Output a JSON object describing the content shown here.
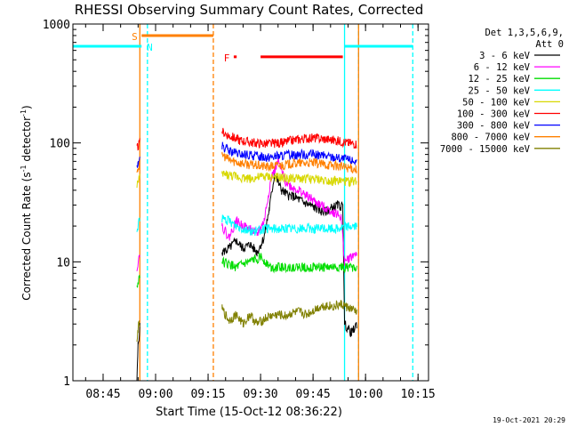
{
  "chart_data": {
    "type": "line",
    "title": "RHESSI Observing Summary Count Rates, Corrected",
    "xlabel": "Start Time (15-Oct-12 08:36:22)",
    "ylabel_main": "Corrected Count Rate (s",
    "ylabel_sup1": "-1",
    "ylabel_mid": " detector",
    "ylabel_sup2": "-1",
    "ylabel_end": ")",
    "y_scale": "log",
    "ylim": [
      1,
      1000
    ],
    "xlim": [
      "08:36:22",
      "10:18:00"
    ],
    "x_ticks": [
      "08:45",
      "09:00",
      "09:15",
      "09:30",
      "09:45",
      "10:00",
      "10:15"
    ],
    "y_ticks": [
      "1",
      "10",
      "100",
      "1000"
    ],
    "legend": {
      "position": "top-right",
      "header_1": "Det 1,3,5,6,9,",
      "header_2": "Att 0",
      "entries": [
        {
          "label": "3 - 6 keV",
          "color": "#000000"
        },
        {
          "label": "6 - 12 keV",
          "color": "#ff00ff"
        },
        {
          "label": "12 - 25 keV",
          "color": "#00dd00"
        },
        {
          "label": "25 - 50 keV",
          "color": "#00ffff"
        },
        {
          "label": "50 - 100 keV",
          "color": "#d8d800"
        },
        {
          "label": "100 - 300 keV",
          "color": "#ff0000"
        },
        {
          "label": "300 - 800 keV",
          "color": "#0000ff"
        },
        {
          "label": "800 - 7000 keV",
          "color": "#ff8000"
        },
        {
          "label": "7000 - 15000 keV",
          "color": "#808000"
        }
      ]
    },
    "segments": [
      {
        "start": "08:54:30",
        "end": "08:56:00"
      },
      {
        "start": "09:19:00",
        "end": "09:57:30"
      }
    ],
    "series": [
      {
        "name": "3 - 6 keV",
        "color": "#000000",
        "points": [
          [
            "08:54:40",
            1
          ],
          [
            "08:55:00",
            2
          ],
          [
            "08:55:30",
            2.8
          ],
          [
            "09:19:00",
            12
          ],
          [
            "09:21:00",
            13
          ],
          [
            "09:23:00",
            15
          ],
          [
            "09:25:00",
            13
          ],
          [
            "09:27:00",
            14
          ],
          [
            "09:29:00",
            12
          ],
          [
            "09:31:00",
            16
          ],
          [
            "09:32:30",
            28
          ],
          [
            "09:34:00",
            55
          ],
          [
            "09:36:00",
            40
          ],
          [
            "09:38:00",
            36
          ],
          [
            "09:40:00",
            35
          ],
          [
            "09:42:00",
            32
          ],
          [
            "09:44:00",
            30
          ],
          [
            "09:46:00",
            28
          ],
          [
            "09:48:00",
            26
          ],
          [
            "09:50:00",
            28
          ],
          [
            "09:52:00",
            30
          ],
          [
            "09:53:30",
            29
          ],
          [
            "09:54:00",
            3
          ],
          [
            "09:56:00",
            2.5
          ],
          [
            "09:57:30",
            3
          ]
        ]
      },
      {
        "name": "6 - 12 keV",
        "color": "#ff00ff",
        "points": [
          [
            "08:54:40",
            9
          ],
          [
            "08:55:30",
            12
          ],
          [
            "09:19:00",
            20
          ],
          [
            "09:21:00",
            16
          ],
          [
            "09:23:00",
            22
          ],
          [
            "09:25:00",
            20
          ],
          [
            "09:27:00",
            19
          ],
          [
            "09:29:00",
            17
          ],
          [
            "09:31:00",
            22
          ],
          [
            "09:33:00",
            50
          ],
          [
            "09:35:00",
            70
          ],
          [
            "09:37:00",
            48
          ],
          [
            "09:39:00",
            42
          ],
          [
            "09:41:00",
            40
          ],
          [
            "09:43:00",
            36
          ],
          [
            "09:45:00",
            33
          ],
          [
            "09:47:00",
            30
          ],
          [
            "09:49:00",
            28
          ],
          [
            "09:51:00",
            26
          ],
          [
            "09:53:00",
            24
          ],
          [
            "09:54:00",
            10
          ],
          [
            "09:57:30",
            12
          ]
        ]
      },
      {
        "name": "12 - 25 keV",
        "color": "#00dd00",
        "points": [
          [
            "08:54:40",
            6
          ],
          [
            "08:55:30",
            8
          ],
          [
            "09:19:00",
            10
          ],
          [
            "09:23:00",
            9
          ],
          [
            "09:27:00",
            10
          ],
          [
            "09:30:00",
            11
          ],
          [
            "09:33:00",
            9
          ],
          [
            "09:37:00",
            9
          ],
          [
            "09:41:00",
            9
          ],
          [
            "09:45:00",
            9
          ],
          [
            "09:49:00",
            9
          ],
          [
            "09:53:00",
            9
          ],
          [
            "09:57:30",
            9
          ]
        ]
      },
      {
        "name": "25 - 50 keV",
        "color": "#00ffff",
        "points": [
          [
            "08:54:40",
            18
          ],
          [
            "08:55:30",
            24
          ],
          [
            "09:19:00",
            23
          ],
          [
            "09:21:00",
            22
          ],
          [
            "09:23:00",
            20
          ],
          [
            "09:25:00",
            19
          ],
          [
            "09:28:00",
            18
          ],
          [
            "09:32:00",
            19
          ],
          [
            "09:36:00",
            19
          ],
          [
            "09:40:00",
            19
          ],
          [
            "09:44:00",
            19
          ],
          [
            "09:48:00",
            19
          ],
          [
            "09:52:00",
            19
          ],
          [
            "09:55:00",
            20
          ],
          [
            "09:57:30",
            20
          ]
        ]
      },
      {
        "name": "50 - 100 keV",
        "color": "#d8d800",
        "points": [
          [
            "08:54:40",
            45
          ],
          [
            "08:55:30",
            50
          ],
          [
            "09:19:00",
            55
          ],
          [
            "09:23:00",
            52
          ],
          [
            "09:27:00",
            50
          ],
          [
            "09:31:00",
            52
          ],
          [
            "09:35:00",
            51
          ],
          [
            "09:39:00",
            50
          ],
          [
            "09:43:00",
            50
          ],
          [
            "09:47:00",
            49
          ],
          [
            "09:51:00",
            48
          ],
          [
            "09:55:00",
            47
          ],
          [
            "09:57:30",
            48
          ]
        ]
      },
      {
        "name": "100 - 300 keV",
        "color": "#ff0000",
        "points": [
          [
            "08:54:40",
            90
          ],
          [
            "08:55:30",
            100
          ],
          [
            "09:19:00",
            125
          ],
          [
            "09:21:00",
            115
          ],
          [
            "09:24:00",
            105
          ],
          [
            "09:28:00",
            100
          ],
          [
            "09:32:00",
            98
          ],
          [
            "09:36:00",
            100
          ],
          [
            "09:40:00",
            106
          ],
          [
            "09:44:00",
            110
          ],
          [
            "09:48:00",
            108
          ],
          [
            "09:52:00",
            104
          ],
          [
            "09:55:00",
            100
          ],
          [
            "09:57:30",
            98
          ]
        ]
      },
      {
        "name": "300 - 800 keV",
        "color": "#0000ff",
        "points": [
          [
            "08:54:40",
            65
          ],
          [
            "08:55:30",
            70
          ],
          [
            "09:19:00",
            95
          ],
          [
            "09:21:00",
            85
          ],
          [
            "09:24:00",
            80
          ],
          [
            "09:28:00",
            78
          ],
          [
            "09:32:00",
            76
          ],
          [
            "09:36:00",
            78
          ],
          [
            "09:40:00",
            80
          ],
          [
            "09:44:00",
            80
          ],
          [
            "09:48:00",
            78
          ],
          [
            "09:52:00",
            75
          ],
          [
            "09:55:00",
            72
          ],
          [
            "09:57:30",
            70
          ]
        ]
      },
      {
        "name": "800 - 7000 keV",
        "color": "#ff8000",
        "points": [
          [
            "08:54:40",
            60
          ],
          [
            "08:55:30",
            65
          ],
          [
            "09:19:00",
            80
          ],
          [
            "09:21:00",
            72
          ],
          [
            "09:24:00",
            68
          ],
          [
            "09:28:00",
            65
          ],
          [
            "09:32:00",
            63
          ],
          [
            "09:36:00",
            65
          ],
          [
            "09:40:00",
            67
          ],
          [
            "09:44:00",
            68
          ],
          [
            "09:48:00",
            66
          ],
          [
            "09:52:00",
            64
          ],
          [
            "09:55:00",
            62
          ],
          [
            "09:57:30",
            60
          ]
        ]
      },
      {
        "name": "7000 - 15000 keV",
        "color": "#808000",
        "points": [
          [
            "08:54:40",
            2
          ],
          [
            "08:55:00",
            2.8
          ],
          [
            "08:55:30",
            3
          ],
          [
            "09:19:00",
            4
          ],
          [
            "09:21:00",
            3.2
          ],
          [
            "09:23:00",
            3.6
          ],
          [
            "09:25:00",
            3
          ],
          [
            "09:27:00",
            3.6
          ],
          [
            "09:29:00",
            3
          ],
          [
            "09:31:00",
            3.3
          ],
          [
            "09:33:00",
            3.5
          ],
          [
            "09:35:00",
            3.6
          ],
          [
            "09:37:00",
            3.5
          ],
          [
            "09:39:00",
            3.7
          ],
          [
            "09:41:00",
            3.8
          ],
          [
            "09:43:00",
            3.6
          ],
          [
            "09:45:00",
            3.9
          ],
          [
            "09:47:00",
            4.2
          ],
          [
            "09:49:00",
            4.3
          ],
          [
            "09:51:00",
            4.2
          ],
          [
            "09:53:00",
            4.4
          ],
          [
            "09:57:30",
            3.8
          ]
        ]
      }
    ],
    "flag_bars": [
      {
        "label": "S",
        "color": "#ff8000",
        "start": "08:56:00",
        "end": "09:16:30",
        "value": 800
      },
      {
        "label": "F",
        "color": "#ff0000",
        "start": "09:22:20",
        "end": "09:23:10",
        "value": 530
      },
      {
        "label": "",
        "color": "#ff0000",
        "start": "09:30:00",
        "end": "09:53:30",
        "value": 530
      },
      {
        "label": "N",
        "color": "#00ffff",
        "start": "08:36:22",
        "end": "08:56:00",
        "value": 650
      },
      {
        "label": "",
        "color": "#00ffff",
        "start": "09:54:00",
        "end": "10:13:30",
        "value": 650
      }
    ],
    "vertical_lines": [
      {
        "time": "08:55:30",
        "color": "#ff8000",
        "style": "solid"
      },
      {
        "time": "08:57:40",
        "color": "#00ffff",
        "style": "dashed"
      },
      {
        "time": "09:16:30",
        "color": "#ff8000",
        "style": "dashed"
      },
      {
        "time": "09:54:00",
        "color": "#00ffff",
        "style": "solid"
      },
      {
        "time": "09:58:00",
        "color": "#00ffff",
        "style": "dashed"
      },
      {
        "time": "10:13:30",
        "color": "#00ffff",
        "style": "dashed"
      },
      {
        "time": "09:58:00",
        "color": "#ff8000",
        "style": "solid"
      }
    ],
    "plot_annotations": {
      "s_label": "S",
      "n_label": "N",
      "f_label": "F"
    }
  },
  "footer": {
    "date_stamp": "19-Oct-2021 20:29"
  }
}
